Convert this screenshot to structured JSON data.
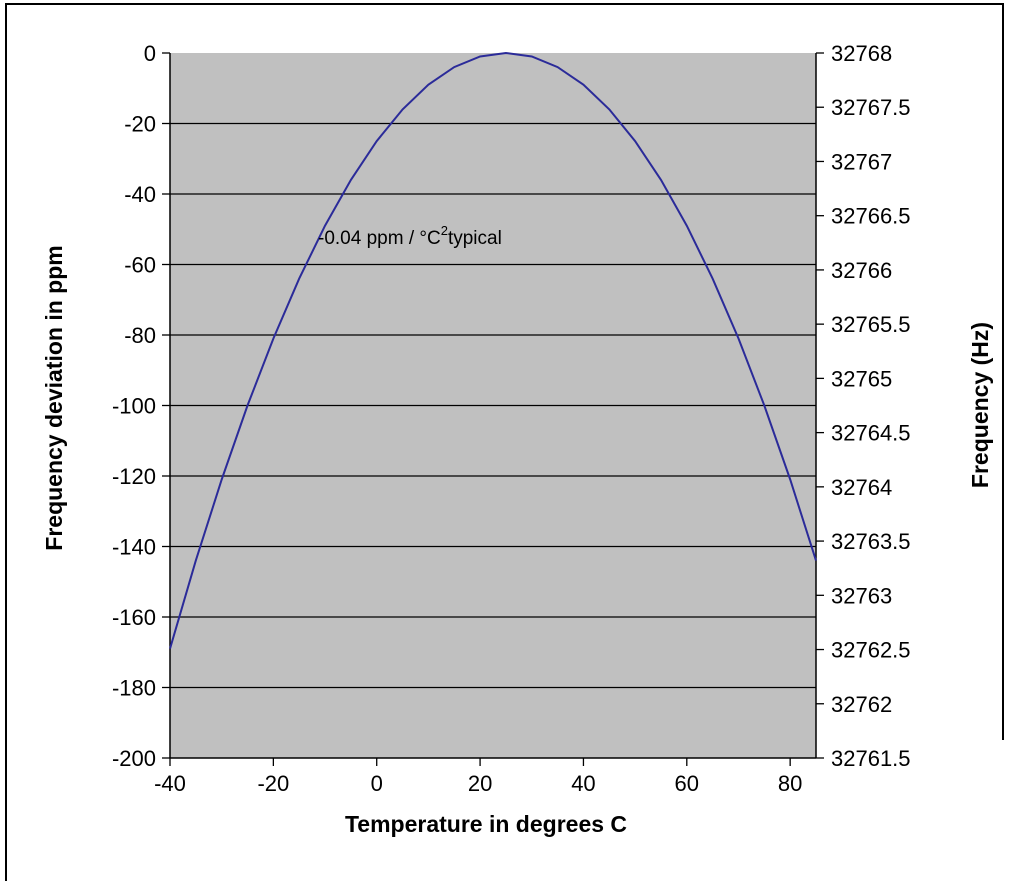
{
  "chart_data": {
    "type": "line",
    "title": "",
    "xlabel": "Temperature in degrees C",
    "ylabel": "Frequency deviation in ppm",
    "y2label": "Frequency (Hz)",
    "xlim": [
      -40,
      85
    ],
    "ylim": [
      -200,
      0
    ],
    "y2lim": [
      32761.5,
      32768
    ],
    "x_ticks": [
      "-40",
      "-20",
      "0",
      "20",
      "40",
      "60",
      "80"
    ],
    "y_ticks": [
      "0",
      "-20",
      "-40",
      "-60",
      "-80",
      "-100",
      "-120",
      "-140",
      "-160",
      "-180",
      "-200"
    ],
    "y2_ticks": [
      "32768",
      "32767.5",
      "32767",
      "32766.5",
      "32766",
      "32765.5",
      "32765",
      "32764.5",
      "32764",
      "32763.5",
      "32763",
      "32762.5",
      "32762",
      "32761.5"
    ],
    "grid": {
      "horizontal": true,
      "vertical": false
    },
    "plot_background": "#c0c0c0",
    "series": [
      {
        "color": "#2b2b99",
        "x": [
          -40,
          -35,
          -30,
          -25,
          -20,
          -15,
          -10,
          -5,
          0,
          5,
          10,
          15,
          20,
          25,
          30,
          35,
          40,
          45,
          50,
          55,
          60,
          65,
          70,
          75,
          80,
          85
        ],
        "y": [
          -169,
          -144,
          -121,
          -100,
          -81,
          -64,
          -49,
          -36,
          -25,
          -16,
          -9,
          -4,
          -1,
          0,
          -1,
          -4,
          -9,
          -16,
          -25,
          -36,
          -49,
          -64,
          -81,
          -100,
          -121,
          -144
        ]
      }
    ],
    "annotations": [
      {
        "text": "-0.04 ppm / °C",
        "superscript": "2",
        "suffix": "typical"
      }
    ]
  }
}
